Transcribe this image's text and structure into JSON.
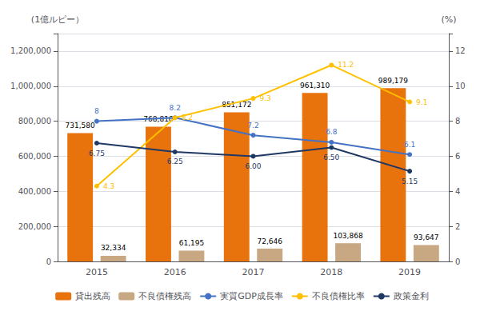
{
  "chart_data": {
    "type": "bar",
    "categories": [
      "2015",
      "2016",
      "2017",
      "2018",
      "2019"
    ],
    "series": [
      {
        "name": "貸出残高",
        "type": "bar",
        "color": "#E8720C",
        "axis": "y",
        "values": [
          731580,
          768816,
          851172,
          961310,
          989179
        ],
        "value_labels": [
          "731,580",
          "768,816",
          "851,172",
          "961,310",
          "989,179"
        ]
      },
      {
        "name": "不良債権残高",
        "type": "bar",
        "color": "#C8A882",
        "axis": "y",
        "values": [
          32334,
          61195,
          72646,
          103868,
          93647
        ],
        "value_labels": [
          "32,334",
          "61,195",
          "72,646",
          "103,868",
          "93,647"
        ]
      },
      {
        "name": "実質GDP成長率",
        "type": "line",
        "color": "#4472C4",
        "axis": "y2",
        "marker": "circle",
        "values": [
          8.0,
          8.2,
          7.2,
          6.8,
          6.1
        ],
        "value_labels": [
          "8",
          "8.2",
          "7.2",
          "6.8",
          "6.1"
        ]
      },
      {
        "name": "不良債権比率",
        "type": "line",
        "color": "#FFC000",
        "axis": "y2",
        "marker": "circle",
        "values": [
          4.3,
          8.2,
          9.3,
          11.2,
          9.1
        ],
        "value_labels": [
          "4.3",
          "8.2",
          "9.3",
          "11.2",
          "9.1"
        ]
      },
      {
        "name": "政策金利",
        "type": "line",
        "color": "#1F3864",
        "axis": "y2",
        "marker": "circle",
        "values": [
          6.75,
          6.25,
          6.0,
          6.5,
          5.15
        ],
        "value_labels": [
          "6.75",
          "6.25",
          "6.00",
          "6.50",
          "5.15"
        ]
      }
    ],
    "ylabel": "(1億ルピー）",
    "y2label": "(%)",
    "ylim": [
      0,
      1300000
    ],
    "yticks": [
      0,
      {
        "value": 200000,
        "label": "200,000"
      },
      {
        "value": 400000,
        "label": "400,000"
      },
      {
        "value": 600000,
        "label": "600,000"
      },
      {
        "value": 800000,
        "label": "800,000"
      },
      {
        "value": 1000000,
        "label": "1,000,000"
      },
      {
        "value": 1200000,
        "label": "1,200,000"
      }
    ],
    "y2lim": [
      0,
      13
    ],
    "y2ticks": [
      0,
      2,
      4,
      6,
      8,
      10,
      12
    ],
    "grid": true,
    "legend": "bottom",
    "data_labels": true
  }
}
